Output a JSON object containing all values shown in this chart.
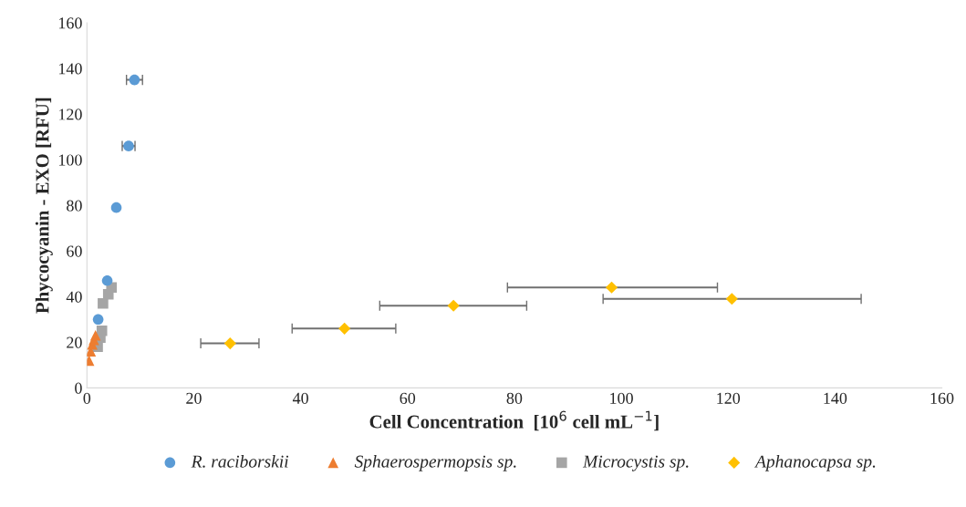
{
  "chart_data": {
    "type": "scatter",
    "xlabel": "Cell Concentration  [10$^{6}$ cell mL$^{−1}$]",
    "ylabel": "Phycocyanin - EXO [RFU]",
    "xlim": [
      0,
      160
    ],
    "xticks": [
      0,
      20,
      40,
      60,
      80,
      100,
      120,
      140,
      160
    ],
    "ylim": [
      0,
      160
    ],
    "yticks": [
      0,
      20,
      40,
      60,
      80,
      100,
      120,
      140,
      160
    ],
    "grid": false,
    "legend": "bottom",
    "series": [
      {
        "name": "R. raciborskii",
        "color": "#5b9bd5",
        "marker": "circle",
        "x": [
          2.1,
          3.8,
          5.5,
          7.8,
          8.9
        ],
        "values": [
          30,
          47,
          79,
          106,
          135
        ],
        "xerrors": [
          null,
          null,
          null,
          1.2,
          1.5
        ]
      },
      {
        "name": "Sphaerospermopsis sp.",
        "color": "#ed7d31",
        "marker": "triangle",
        "x": [
          0.4,
          0.7,
          1.0,
          1.3,
          1.6
        ],
        "values": [
          12,
          16,
          19,
          21,
          23
        ]
      },
      {
        "name": "Microcystis sp.",
        "color": "#a5a5a5",
        "marker": "square",
        "x": [
          2.0,
          2.5,
          2.8,
          3.0,
          4.0,
          4.6
        ],
        "values": [
          18,
          22,
          25,
          37,
          41,
          44
        ]
      },
      {
        "name": "Aphanocapsa sp.",
        "color": "#ffc000",
        "marker": "diamond",
        "x": [
          26.8,
          48.2,
          68.6,
          98.2,
          120.7
        ],
        "values": [
          19.5,
          26,
          36,
          44,
          39
        ],
        "xerrors": [
          [
            21.3,
            32.2
          ],
          [
            38.4,
            57.8
          ],
          [
            54.8,
            82.3
          ],
          [
            78.7,
            118
          ],
          [
            96.6,
            144.9
          ]
        ]
      }
    ]
  }
}
